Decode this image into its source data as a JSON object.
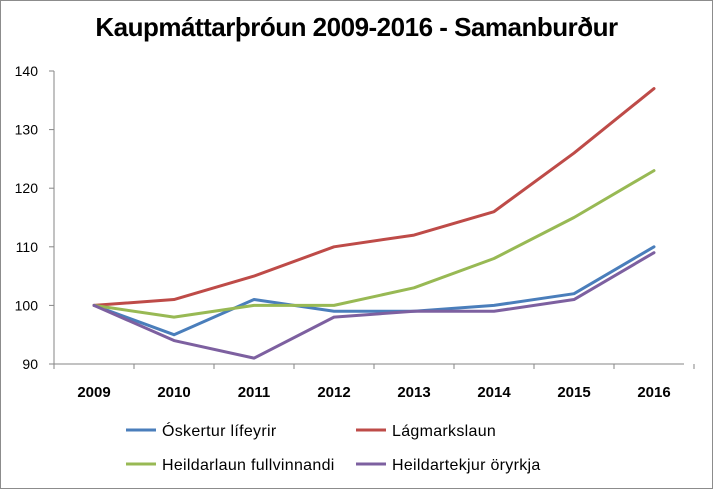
{
  "chart_data": {
    "type": "line",
    "title": "Kaupmáttarþróun 2009-2016 - Samanburður",
    "xlabel": "",
    "ylabel": "",
    "categories": [
      "2009",
      "2010",
      "2011",
      "2012",
      "2013",
      "2014",
      "2015",
      "2016"
    ],
    "ylim": [
      90,
      140
    ],
    "yticks": [
      90,
      100,
      110,
      120,
      130,
      140
    ],
    "grid": false,
    "legend_position": "bottom",
    "series": [
      {
        "name": "Óskertur lífeyrir",
        "color": "#4a7ebb",
        "values": [
          100,
          95,
          101,
          99,
          99,
          100,
          102,
          110
        ]
      },
      {
        "name": "Lágmarkslaun",
        "color": "#be4b48",
        "values": [
          100,
          101,
          105,
          110,
          112,
          116,
          126,
          137
        ]
      },
      {
        "name": "Heildarlaun fullvinnandi",
        "color": "#98b954",
        "values": [
          100,
          98,
          100,
          100,
          103,
          108,
          115,
          123
        ]
      },
      {
        "name": "Heildartekjur öryrkja",
        "color": "#7d60a0",
        "values": [
          100,
          94,
          91,
          98,
          99,
          99,
          101,
          109
        ]
      }
    ]
  }
}
